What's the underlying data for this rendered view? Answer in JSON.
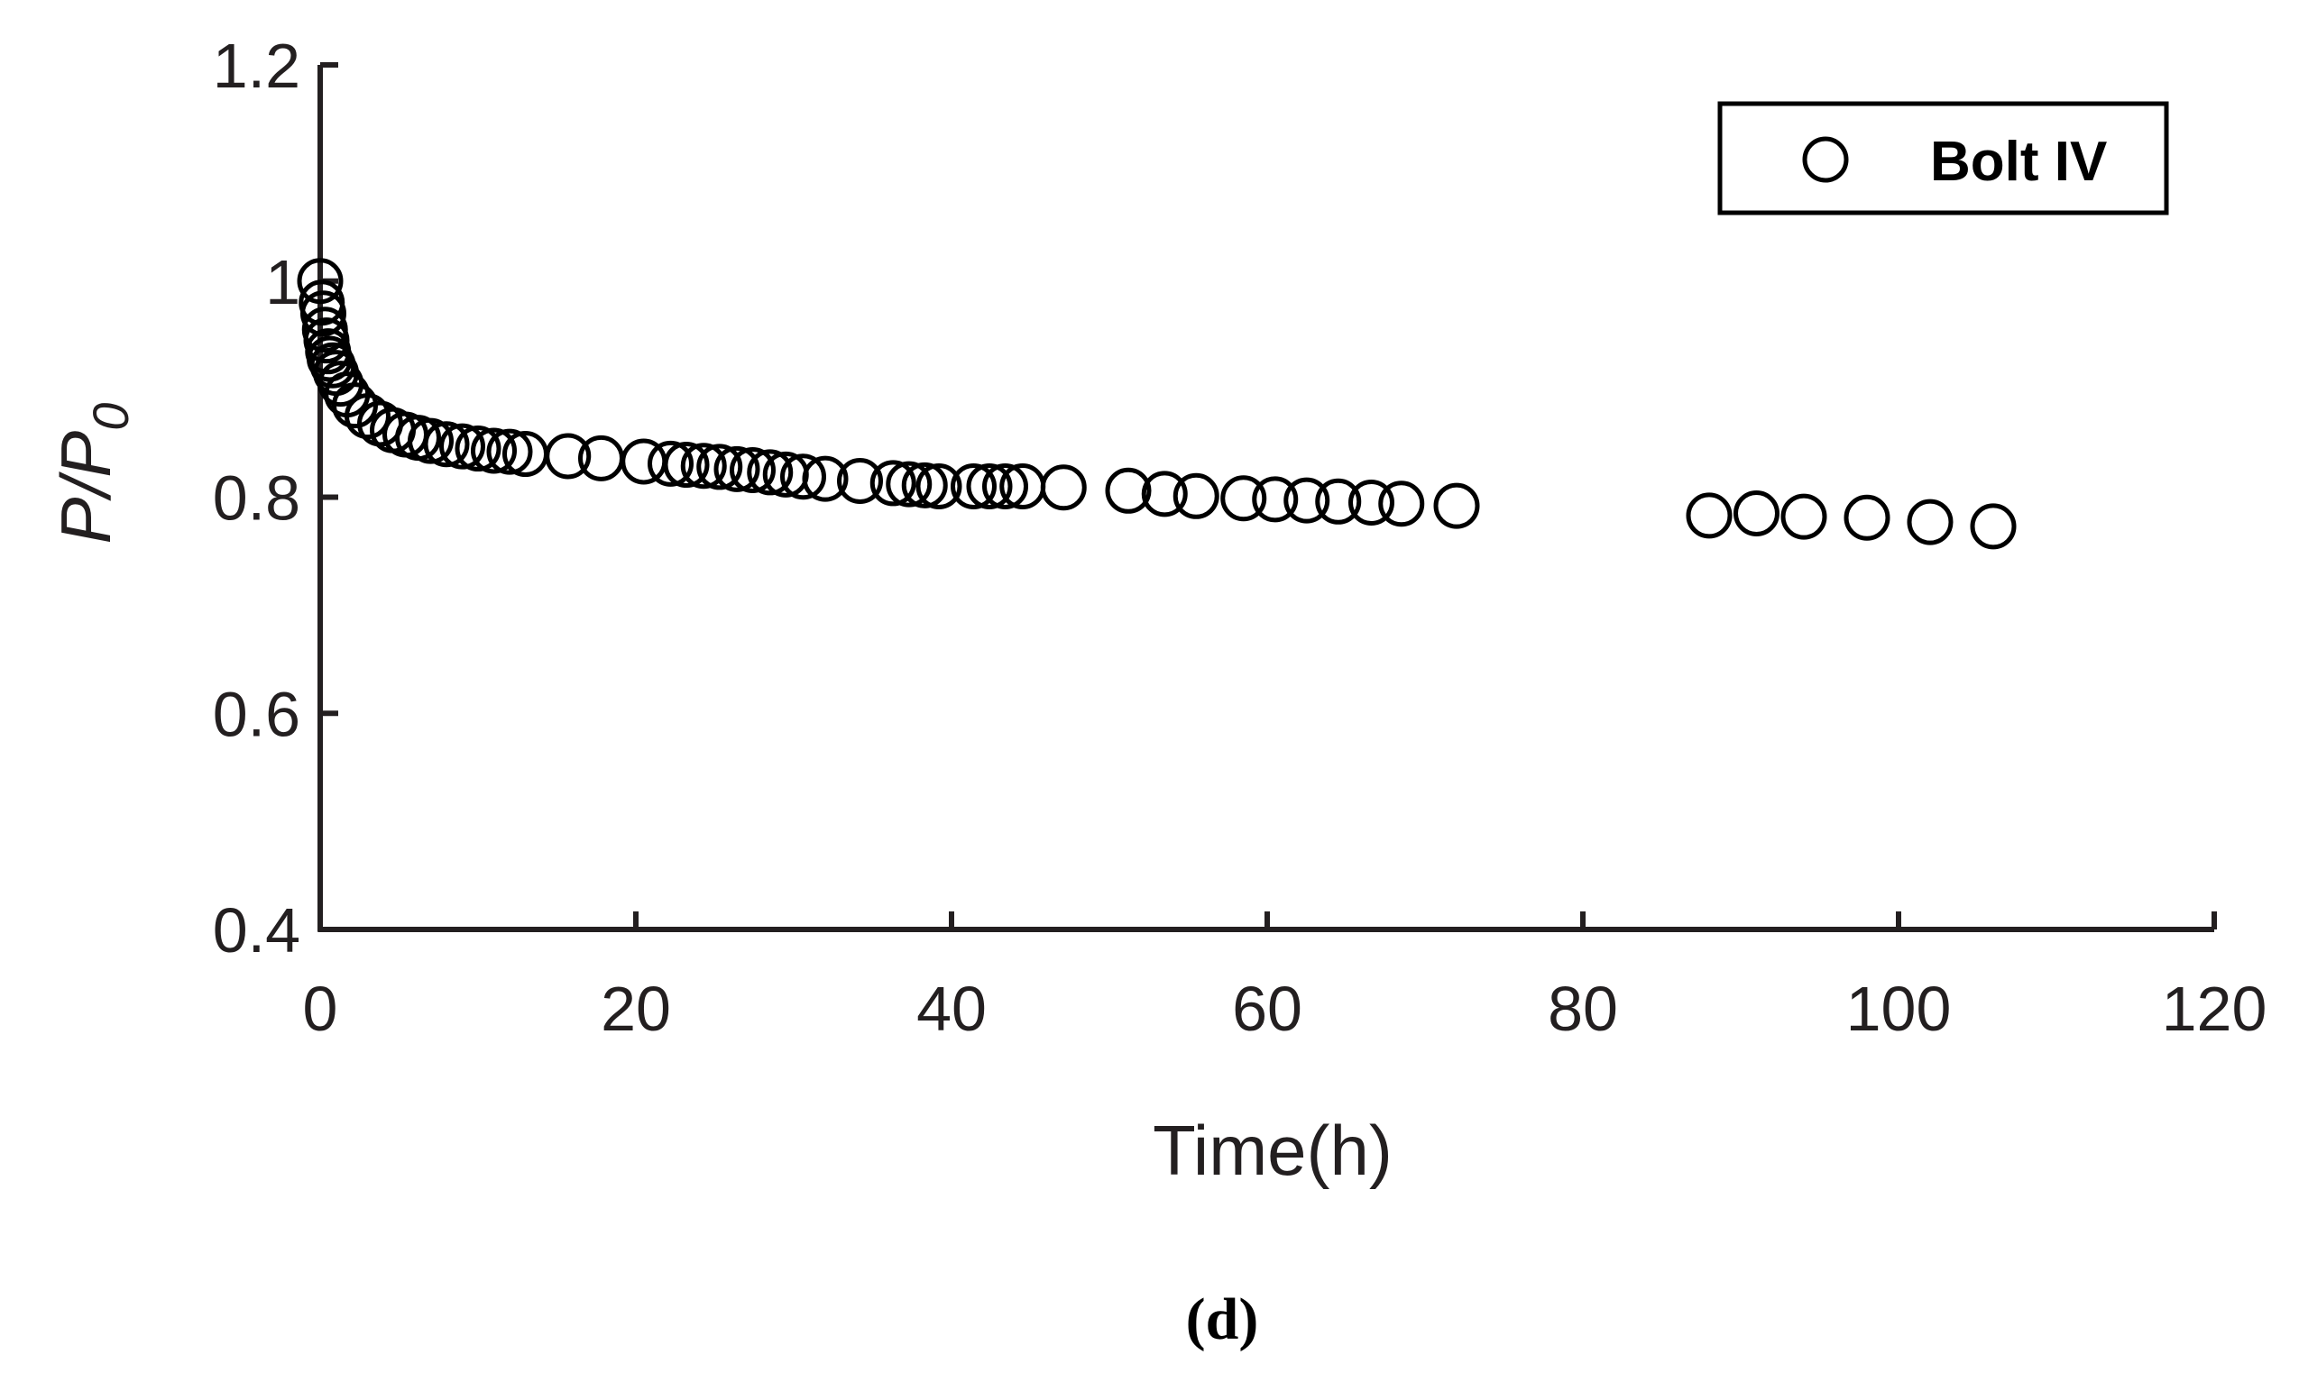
{
  "chart_data": {
    "type": "scatter",
    "xlabel": "Time(h)",
    "ylabel": {
      "main": "P/P",
      "sub": "0"
    },
    "xlim": [
      0,
      120
    ],
    "ylim": [
      0.4,
      1.2
    ],
    "xticks": [
      0,
      20,
      40,
      60,
      80,
      100,
      120
    ],
    "yticks": [
      0.4,
      0.6,
      0.8,
      1.0,
      1.2
    ],
    "xtick_labels": [
      "0",
      "20",
      "40",
      "60",
      "80",
      "100",
      "120"
    ],
    "ytick_labels": [
      "0.4",
      "0.6",
      "0.8",
      "1",
      "1.2"
    ],
    "grid": false,
    "legend_position": "top-right",
    "panel_label": "(d)",
    "colors": {
      "axis": "#231f20",
      "marker": "#000000"
    },
    "series": [
      {
        "name": "Bolt IV",
        "marker": "open-circle",
        "x": [
          0,
          0.1,
          0.2,
          0.3,
          0.4,
          0.5,
          0.6,
          0.8,
          1.0,
          1.3,
          1.7,
          2.2,
          3.0,
          3.8,
          4.6,
          5.4,
          6.2,
          7.0,
          8.0,
          9.0,
          10.0,
          11.0,
          12.0,
          13.0,
          15.7,
          17.8,
          20.5,
          22.2,
          23.2,
          24.3,
          25.3,
          26.4,
          27.4,
          28.5,
          29.5,
          30.6,
          32.0,
          34.2,
          36.3,
          37.3,
          38.3,
          39.2,
          41.4,
          42.4,
          43.4,
          44.5,
          47.1,
          51.2,
          53.5,
          55.5,
          58.5,
          60.5,
          62.5,
          64.5,
          66.6,
          68.5,
          72.0,
          88.0,
          91.0,
          94.0,
          98.0,
          102.0,
          106.0
        ],
        "y": [
          1.0,
          0.98,
          0.97,
          0.955,
          0.945,
          0.935,
          0.928,
          0.922,
          0.915,
          0.905,
          0.895,
          0.885,
          0.875,
          0.868,
          0.862,
          0.858,
          0.855,
          0.852,
          0.849,
          0.847,
          0.845,
          0.843,
          0.842,
          0.84,
          0.838,
          0.836,
          0.833,
          0.831,
          0.83,
          0.829,
          0.828,
          0.826,
          0.825,
          0.823,
          0.821,
          0.819,
          0.817,
          0.815,
          0.813,
          0.812,
          0.811,
          0.81,
          0.81,
          0.81,
          0.81,
          0.81,
          0.809,
          0.806,
          0.803,
          0.801,
          0.799,
          0.798,
          0.797,
          0.796,
          0.795,
          0.794,
          0.792,
          0.783,
          0.785,
          0.782,
          0.781,
          0.777,
          0.773
        ]
      }
    ]
  }
}
